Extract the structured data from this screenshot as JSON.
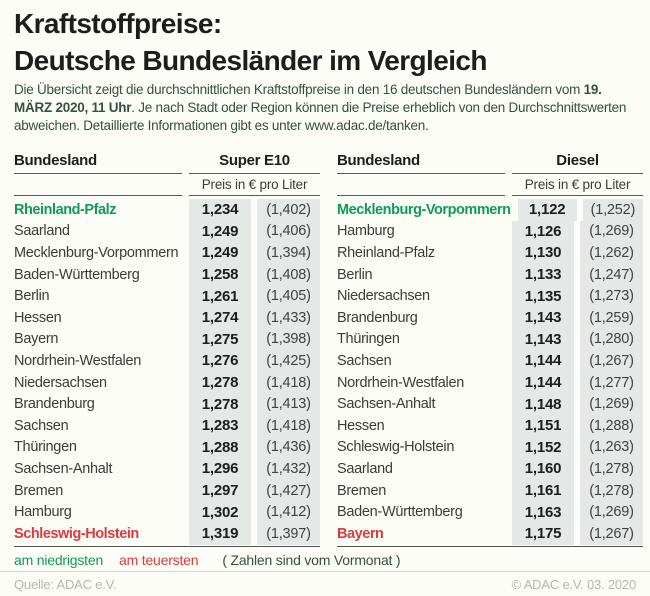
{
  "page": {
    "title_line1": "Kraftstoffpreise:",
    "title_line2": "Deutsche Bundesländer im Vergleich"
  },
  "intro": {
    "part1": "Die Übersicht zeigt die durchschnittlichen Kraftstoffpreise in den 16 deutschen Bundesländern vom ",
    "bold": "19. MÄRZ 2020, 11 Uhr",
    "part2": ". Je nach Stadt oder Region können die Preise erheblich von den Durchschnittswerten abweichen. Detaillierte Informationen gibt es unter www.adac.de/tanken."
  },
  "tables": [
    {
      "id": "super-e10",
      "state_header": "Bundesland",
      "fuel_header": "Super E10",
      "unit_header": "Preis in € pro Liter",
      "rows": [
        {
          "state": "Rheinland-Pfalz",
          "price": "1,234",
          "previous": "(1,402)",
          "highlight": "lowest"
        },
        {
          "state": "Saarland",
          "price": "1,249",
          "previous": "(1,406)",
          "highlight": null
        },
        {
          "state": "Mecklenburg-Vorpommern",
          "price": "1,249",
          "previous": "(1,394)",
          "highlight": null
        },
        {
          "state": "Baden-Württemberg",
          "price": "1,258",
          "previous": "(1,408)",
          "highlight": null
        },
        {
          "state": "Berlin",
          "price": "1,261",
          "previous": "(1,405)",
          "highlight": null
        },
        {
          "state": "Hessen",
          "price": "1,274",
          "previous": "(1,433)",
          "highlight": null
        },
        {
          "state": "Bayern",
          "price": "1,275",
          "previous": "(1,398)",
          "highlight": null
        },
        {
          "state": "Nordrhein-Westfalen",
          "price": "1,276",
          "previous": "(1,425)",
          "highlight": null
        },
        {
          "state": "Niedersachsen",
          "price": "1,278",
          "previous": "(1,418)",
          "highlight": null
        },
        {
          "state": "Brandenburg",
          "price": "1,278",
          "previous": "(1,413)",
          "highlight": null
        },
        {
          "state": "Sachsen",
          "price": "1,283",
          "previous": "(1,418)",
          "highlight": null
        },
        {
          "state": "Thüringen",
          "price": "1,288",
          "previous": "(1,436)",
          "highlight": null
        },
        {
          "state": "Sachsen-Anhalt",
          "price": "1,296",
          "previous": "(1,432)",
          "highlight": null
        },
        {
          "state": "Bremen",
          "price": "1,297",
          "previous": "(1,427)",
          "highlight": null
        },
        {
          "state": "Hamburg",
          "price": "1,302",
          "previous": "(1,412)",
          "highlight": null
        },
        {
          "state": "Schleswig-Holstein",
          "price": "1,319",
          "previous": "(1,397)",
          "highlight": "highest"
        }
      ]
    },
    {
      "id": "diesel",
      "state_header": "Bundesland",
      "fuel_header": "Diesel",
      "unit_header": "Preis in € pro Liter",
      "rows": [
        {
          "state": "Mecklenburg-Vorpommern",
          "price": "1,122",
          "previous": "(1,252)",
          "highlight": "lowest"
        },
        {
          "state": "Hamburg",
          "price": "1,126",
          "previous": "(1,269)",
          "highlight": null
        },
        {
          "state": "Rheinland-Pfalz",
          "price": "1,130",
          "previous": "(1,262)",
          "highlight": null
        },
        {
          "state": "Berlin",
          "price": "1,133",
          "previous": "(1,247)",
          "highlight": null
        },
        {
          "state": "Niedersachsen",
          "price": "1,135",
          "previous": "(1,273)",
          "highlight": null
        },
        {
          "state": "Brandenburg",
          "price": "1,143",
          "previous": "(1,259)",
          "highlight": null
        },
        {
          "state": "Thüringen",
          "price": "1,143",
          "previous": "(1,280)",
          "highlight": null
        },
        {
          "state": "Sachsen",
          "price": "1,144",
          "previous": "(1,267)",
          "highlight": null
        },
        {
          "state": "Nordrhein-Westfalen",
          "price": "1,144",
          "previous": "(1,277)",
          "highlight": null
        },
        {
          "state": "Sachsen-Anhalt",
          "price": "1,148",
          "previous": "(1,269)",
          "highlight": null
        },
        {
          "state": "Hessen",
          "price": "1,151",
          "previous": "(1,288)",
          "highlight": null
        },
        {
          "state": "Schleswig-Holstein",
          "price": "1,152",
          "previous": "(1,263)",
          "highlight": null
        },
        {
          "state": "Saarland",
          "price": "1,160",
          "previous": "(1,278)",
          "highlight": null
        },
        {
          "state": "Bremen",
          "price": "1,161",
          "previous": "(1,278)",
          "highlight": null
        },
        {
          "state": "Baden-Württemberg",
          "price": "1,163",
          "previous": "(1,269)",
          "highlight": null
        },
        {
          "state": "Bayern",
          "price": "1,175",
          "previous": "(1,267)",
          "highlight": "highest"
        }
      ]
    }
  ],
  "legend": {
    "lowest": "am niedrigsten",
    "highest": "am teuersten",
    "note": "( Zahlen sind vom Vormonat )"
  },
  "footer": {
    "source": "Quelle: ADAC e.V.",
    "copyright": "© ADAC e.V. 03. 2020"
  },
  "colors": {
    "lowest_green": "#0f9b57",
    "highest_red": "#dd3a3f",
    "cell_shade": "#e4e8e6"
  },
  "chart_data": [
    {
      "type": "table",
      "title": "Super E10",
      "unit": "Preis in € pro Liter",
      "columns": [
        "Bundesland",
        "Preis",
        "Vormonat"
      ],
      "rows": [
        [
          "Rheinland-Pfalz",
          1.234,
          1.402
        ],
        [
          "Saarland",
          1.249,
          1.406
        ],
        [
          "Mecklenburg-Vorpommern",
          1.249,
          1.394
        ],
        [
          "Baden-Württemberg",
          1.258,
          1.408
        ],
        [
          "Berlin",
          1.261,
          1.405
        ],
        [
          "Hessen",
          1.274,
          1.433
        ],
        [
          "Bayern",
          1.275,
          1.398
        ],
        [
          "Nordrhein-Westfalen",
          1.276,
          1.425
        ],
        [
          "Niedersachsen",
          1.278,
          1.418
        ],
        [
          "Brandenburg",
          1.278,
          1.413
        ],
        [
          "Sachsen",
          1.283,
          1.418
        ],
        [
          "Thüringen",
          1.288,
          1.436
        ],
        [
          "Sachsen-Anhalt",
          1.296,
          1.432
        ],
        [
          "Bremen",
          1.297,
          1.427
        ],
        [
          "Hamburg",
          1.302,
          1.412
        ],
        [
          "Schleswig-Holstein",
          1.319,
          1.397
        ]
      ]
    },
    {
      "type": "table",
      "title": "Diesel",
      "unit": "Preis in € pro Liter",
      "columns": [
        "Bundesland",
        "Preis",
        "Vormonat"
      ],
      "rows": [
        [
          "Mecklenburg-Vorpommern",
          1.122,
          1.252
        ],
        [
          "Hamburg",
          1.126,
          1.269
        ],
        [
          "Rheinland-Pfalz",
          1.13,
          1.262
        ],
        [
          "Berlin",
          1.133,
          1.247
        ],
        [
          "Niedersachsen",
          1.135,
          1.273
        ],
        [
          "Brandenburg",
          1.143,
          1.259
        ],
        [
          "Thüringen",
          1.143,
          1.28
        ],
        [
          "Sachsen",
          1.144,
          1.267
        ],
        [
          "Nordrhein-Westfalen",
          1.144,
          1.277
        ],
        [
          "Sachsen-Anhalt",
          1.148,
          1.269
        ],
        [
          "Hessen",
          1.151,
          1.288
        ],
        [
          "Schleswig-Holstein",
          1.152,
          1.263
        ],
        [
          "Saarland",
          1.16,
          1.278
        ],
        [
          "Bremen",
          1.161,
          1.278
        ],
        [
          "Baden-Württemberg",
          1.163,
          1.269
        ],
        [
          "Bayern",
          1.175,
          1.267
        ]
      ]
    }
  ]
}
